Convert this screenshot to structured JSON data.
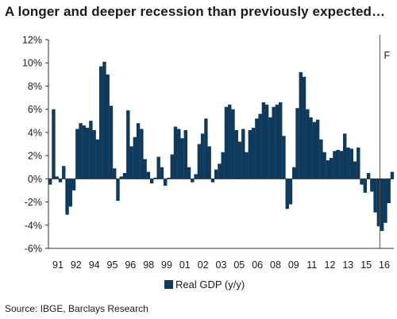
{
  "title": "A longer and deeper recession than previously expected…",
  "source": "Source: IBGE, Barclays Research",
  "forecast_label": "F",
  "legend_label": "Real GDP (y/y)",
  "colors": {
    "bar": "#0f3a5c",
    "axis": "#333333",
    "grid": "#999999"
  },
  "chart_data": {
    "type": "bar",
    "title": "A longer and deeper recession than previously expected…",
    "xlabel": "",
    "ylabel": "",
    "ylim": [
      -6,
      12
    ],
    "yticks": [
      -6,
      -4,
      -2,
      0,
      2,
      4,
      6,
      8,
      10,
      12
    ],
    "ytick_labels": [
      "-6%",
      "-4%",
      "-2%",
      "0%",
      "2%",
      "4%",
      "6%",
      "8%",
      "10%",
      "12%"
    ],
    "xtick_labels": [
      "91",
      "92",
      "94",
      "95",
      "96",
      "98",
      "99",
      "01",
      "02",
      "03",
      "05",
      "06",
      "08",
      "09",
      "11",
      "12",
      "13",
      "15",
      "16"
    ],
    "grid": false,
    "legend": "bottom-left",
    "forecast_from": 98,
    "series": [
      {
        "name": "Real GDP (y/y)",
        "values": [
          -0.5,
          6.0,
          0.2,
          -0.3,
          1.1,
          -3.1,
          -2.4,
          -1.0,
          4.3,
          4.8,
          4.6,
          4.4,
          5.0,
          4.2,
          3.4,
          9.7,
          10.1,
          9.0,
          6.3,
          0.9,
          -1.9,
          0.2,
          0.5,
          5.9,
          2.8,
          3.6,
          4.8,
          4.3,
          1.7,
          0.6,
          -0.4,
          0.1,
          1.9,
          1.0,
          -0.6,
          0.1,
          2.1,
          4.5,
          4.3,
          3.5,
          4.2,
          1.0,
          -0.3,
          0.4,
          3.0,
          3.9,
          5.2,
          2.8,
          -0.3,
          0.8,
          1.3,
          2.3,
          6.2,
          6.4,
          6.0,
          4.2,
          3.2,
          4.3,
          2.3,
          4.2,
          4.4,
          5.2,
          5.6,
          6.6,
          6.4,
          5.3,
          6.2,
          6.4,
          6.6,
          3.7,
          -2.6,
          -2.2,
          1.0,
          6.1,
          9.2,
          8.8,
          6.0,
          5.3,
          4.9,
          5.1,
          3.4,
          2.3,
          1.6,
          1.8,
          2.4,
          2.5,
          2.4,
          3.9,
          2.7,
          2.6,
          1.5,
          2.7,
          -0.5,
          -1.2,
          0.5,
          -1.1,
          -2.9,
          -4.1,
          -4.5,
          -3.8,
          -2.1,
          0.6
        ]
      }
    ]
  }
}
